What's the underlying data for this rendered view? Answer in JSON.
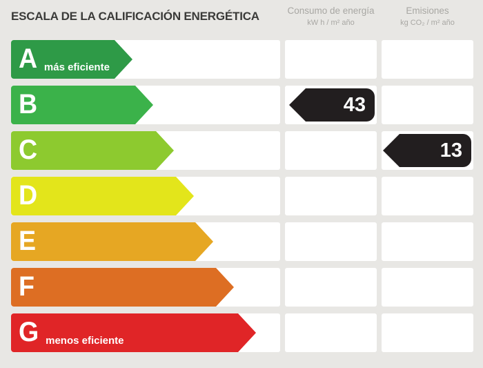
{
  "title": "ESCALA DE LA CALIFICACIÓN ENERGÉTICA",
  "columns": {
    "consumption": {
      "title": "Consumo de energía",
      "unit": "kW h / m² año"
    },
    "emissions": {
      "title": "Emisiones",
      "unit": "kg CO₂ / m² año"
    }
  },
  "ratings": [
    {
      "letter": "A",
      "label": "más eficiente",
      "color": "#2e9a47"
    },
    {
      "letter": "B",
      "label": "",
      "color": "#3bb24a"
    },
    {
      "letter": "C",
      "label": "",
      "color": "#8dca2f"
    },
    {
      "letter": "D",
      "label": "",
      "color": "#e3e51b"
    },
    {
      "letter": "E",
      "label": "",
      "color": "#e6a723"
    },
    {
      "letter": "F",
      "label": "",
      "color": "#dd6e23"
    },
    {
      "letter": "G",
      "label": "menos eficiente",
      "color": "#e02527"
    }
  ],
  "values": {
    "consumption": {
      "value": "43",
      "rating": "B"
    },
    "emissions": {
      "value": "13",
      "rating": "C"
    }
  },
  "badge_color": "#221e1f",
  "chart_data": {
    "type": "table",
    "title": "ESCALA DE LA CALIFICACIÓN ENERGÉTICA",
    "categories": [
      "A",
      "B",
      "C",
      "D",
      "E",
      "F",
      "G"
    ],
    "category_colors": [
      "#2e9a47",
      "#3bb24a",
      "#8dca2f",
      "#e3e51b",
      "#e6a723",
      "#dd6e23",
      "#e02527"
    ],
    "series": [
      {
        "name": "Consumo de energía (kW h / m² año)",
        "values": [
          null,
          43,
          null,
          null,
          null,
          null,
          null
        ]
      },
      {
        "name": "Emisiones (kg CO₂ / m² año)",
        "values": [
          null,
          null,
          13,
          null,
          null,
          null,
          null
        ]
      }
    ],
    "annotations": [
      "A = más eficiente",
      "G = menos eficiente"
    ]
  }
}
